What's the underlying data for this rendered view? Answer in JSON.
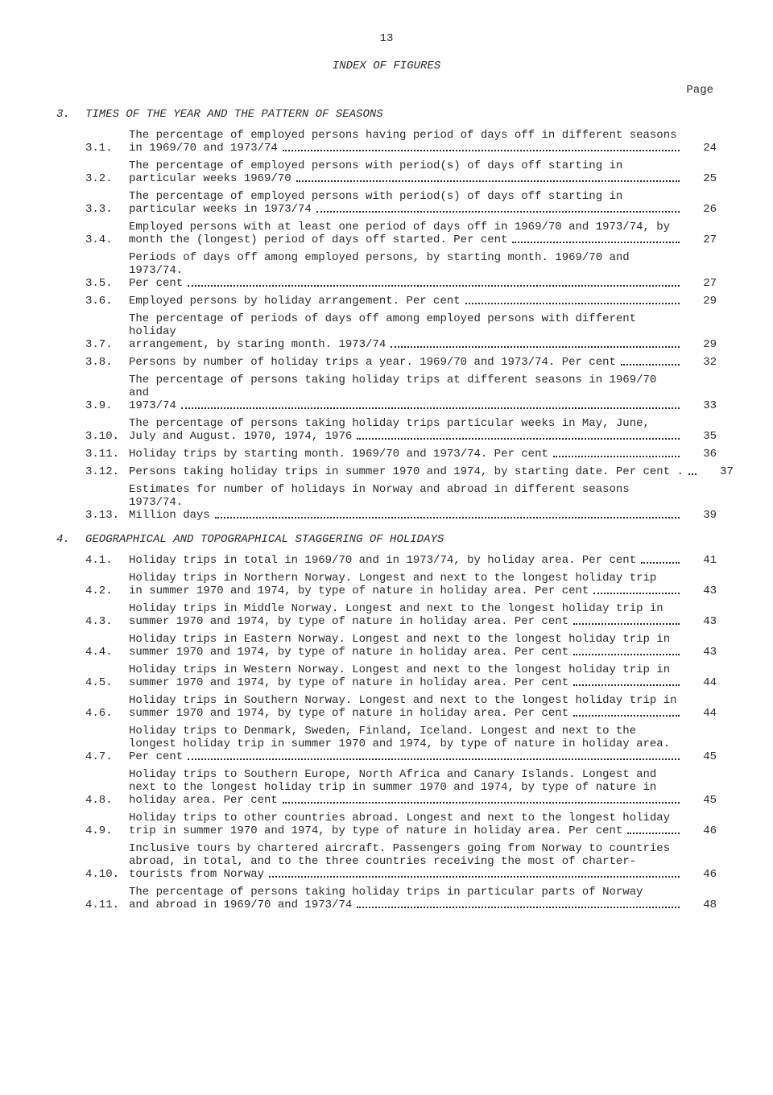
{
  "page_number": "13",
  "title": "INDEX OF FIGURES",
  "page_label": "Page",
  "sections": [
    {
      "num": "3.",
      "title": "TIMES OF THE YEAR AND THE PATTERN OF SEASONS",
      "entries": [
        {
          "num": "3.1.",
          "lines": [
            "The percentage of employed persons having period of days off in different seasons"
          ],
          "last": "in 1969/70 and 1973/74",
          "page": "24"
        },
        {
          "num": "3.2.",
          "lines": [
            "The percentage of employed persons with period(s) of days off starting in"
          ],
          "last": "particular weeks 1969/70",
          "page": "25"
        },
        {
          "num": "3.3.",
          "lines": [
            "The percentage of employed persons with period(s) of days off starting in"
          ],
          "last": "particular weeks in 1973/74",
          "page": "26"
        },
        {
          "num": "3.4.",
          "lines": [
            "Employed persons with at least one period of days off in 1969/70 and 1973/74, by"
          ],
          "last": "month the (longest) period of days off started.  Per cent",
          "page": "27"
        },
        {
          "num": "3.5.",
          "lines": [
            "Periods of days off among employed persons, by starting month.  1969/70 and 1973/74."
          ],
          "last": "Per cent",
          "page": "27"
        },
        {
          "num": "3.6.",
          "lines": [],
          "last": "Employed persons  by holiday arrangement.  Per cent",
          "page": "29"
        },
        {
          "num": "3.7.",
          "lines": [
            "The percentage of periods of days off among employed persons with different holiday"
          ],
          "last": "arrangement, by staring month.  1973/74",
          "page": "29"
        },
        {
          "num": "3.8.",
          "lines": [],
          "last": "Persons  by  number of holiday trips a year.  1969/70 and 1973/74.  Per cent",
          "page": "32"
        },
        {
          "num": "3.9.",
          "lines": [
            "The percentage of persons taking holiday trips at different seasons in 1969/70 and"
          ],
          "last": "1973/74",
          "page": "33"
        },
        {
          "num": "3.10.",
          "lines": [
            "The percentage of persons taking holiday trips particular weeks in May, June,"
          ],
          "last": "July and August.  1970, 1974, 1976",
          "page": "35"
        },
        {
          "num": "3.11.",
          "lines": [],
          "last": "Holiday trips  by starting month.  1969/70 and 1973/74.  Per cent",
          "page": "36"
        },
        {
          "num": "3.12.",
          "lines": [],
          "last": "Persons taking holiday trips in summer 1970 and 1974, by starting date.  Per cent .",
          "page": "37"
        },
        {
          "num": "3.13.",
          "lines": [
            "Estimates for number of holidays in Norway and abroad in different seasons 1973/74."
          ],
          "last": "Million days",
          "page": "39"
        }
      ]
    },
    {
      "num": "4.",
      "title": "GEOGRAPHICAL AND TOPOGRAPHICAL STAGGERING OF HOLIDAYS",
      "entries": [
        {
          "num": "4.1.",
          "lines": [],
          "last": "Holiday trips in total in 1969/70 and in 1973/74, by holiday area.  Per cent",
          "page": "41"
        },
        {
          "num": "4.2.",
          "lines": [
            "Holiday trips in Northern Norway.  Longest and next to the longest holiday trip"
          ],
          "last": "in summer 1970 and 1974, by type of nature in holiday area.  Per cent",
          "page": "43"
        },
        {
          "num": "4.3.",
          "lines": [
            "Holiday trips in Middle Norway.  Longest and next to the longest holiday trip in"
          ],
          "last": "summer 1970 and 1974, by type of nature in holiday area.  Per cent",
          "page": "43"
        },
        {
          "num": "4.4.",
          "lines": [
            "Holiday trips in Eastern Norway.  Longest and next to the longest holiday trip in"
          ],
          "last": "summer 1970 and 1974, by type of nature in holiday area.  Per cent",
          "page": "43"
        },
        {
          "num": "4.5.",
          "lines": [
            "Holiday trips in Western Norway.  Longest and next to the longest holiday trip in"
          ],
          "last": "summer 1970 and 1974, by type of nature in holiday area.  Per cent",
          "page": "44"
        },
        {
          "num": "4.6.",
          "lines": [
            "Holiday trips in Southern Norway.  Longest and next to the longest holiday trip in"
          ],
          "last": "summer 1970 and 1974, by type of nature in holiday area.  Per cent",
          "page": "44"
        },
        {
          "num": "4.7.",
          "lines": [
            "Holiday trips to Denmark, Sweden, Finland, Iceland.  Longest and next to the",
            "longest holiday trip in summer 1970 and 1974, by type of nature in holiday area."
          ],
          "last": "Per cent",
          "page": "45"
        },
        {
          "num": "4.8.",
          "lines": [
            "Holiday trips to Southern Europe, North Africa and Canary Islands.   Longest and",
            "next to the longest holiday trip in summer 1970 and 1974, by type of nature in"
          ],
          "last": "holiday area.  Per cent",
          "page": "45"
        },
        {
          "num": "4.9.",
          "lines": [
            "Holiday trips to other countries abroad.  Longest and next to the longest holiday"
          ],
          "last": "trip in summer 1970 and 1974, by type of nature in holiday area.  Per cent",
          "page": "46"
        },
        {
          "num": "4.10.",
          "lines": [
            "Inclusive tours by chartered aircraft. Passengers going from Norway to countries",
            "abroad, in total, and to the three countries receiving the most of charter-"
          ],
          "last": "tourists from Norway",
          "page": "46"
        },
        {
          "num": "4.11.",
          "lines": [
            "The percentage of persons taking holiday trips in particular parts of Norway"
          ],
          "last": "and abroad in 1969/70 and 1973/74",
          "page": "48"
        }
      ]
    }
  ]
}
